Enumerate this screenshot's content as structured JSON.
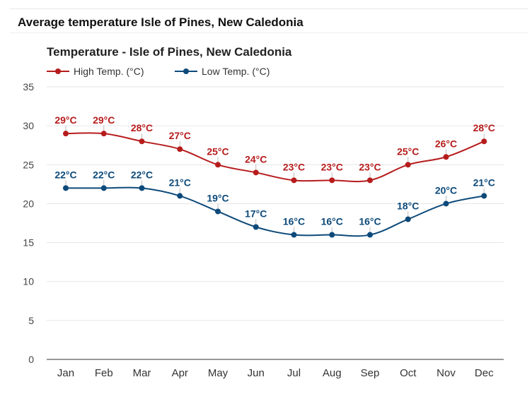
{
  "page": {
    "header_title": "Average temperature Isle of Pines, New Caledonia"
  },
  "colors": {
    "high": "#b71c1c",
    "low": "#0d4a7a",
    "grid": "#e6e6e6",
    "axis": "#333333"
  },
  "chart_data": {
    "type": "line",
    "title": "Temperature - Isle of Pines, New Caledonia",
    "categories": [
      "Jan",
      "Feb",
      "Mar",
      "Apr",
      "May",
      "Jun",
      "Jul",
      "Aug",
      "Sep",
      "Oct",
      "Nov",
      "Dec"
    ],
    "series": [
      {
        "name": "High Temp. (°C)",
        "values": [
          29,
          29,
          28,
          27,
          25,
          24,
          23,
          23,
          23,
          25,
          26,
          28
        ],
        "labels": [
          "29°C",
          "29°C",
          "28°C",
          "27°C",
          "25°C",
          "24°C",
          "23°C",
          "23°C",
          "23°C",
          "25°C",
          "26°C",
          "28°C"
        ]
      },
      {
        "name": "Low Temp. (°C)",
        "values": [
          22,
          22,
          22,
          21,
          19,
          17,
          16,
          16,
          16,
          18,
          20,
          21
        ],
        "labels": [
          "22°C",
          "22°C",
          "22°C",
          "21°C",
          "19°C",
          "17°C",
          "16°C",
          "16°C",
          "16°C",
          "18°C",
          "20°C",
          "21°C"
        ]
      }
    ],
    "ylim": [
      0,
      35
    ],
    "yticks": [
      "0",
      "5",
      "10",
      "15",
      "20",
      "25",
      "30",
      "35"
    ],
    "grid": true,
    "legend": "top-left"
  }
}
